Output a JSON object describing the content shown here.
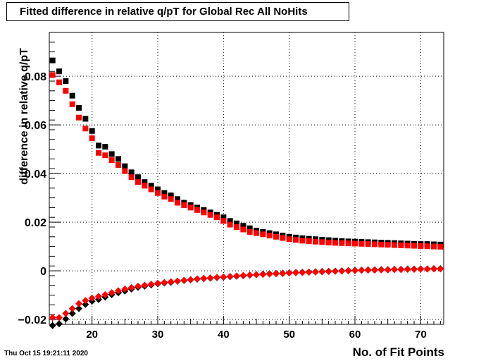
{
  "chart_data": {
    "type": "scatter",
    "title": "Fitted difference in relative q/pT for Global Rec All NoHits",
    "xlabel": "No. of Fit Points",
    "ylabel": "difference in relative q/pT",
    "timestamp": "Thu Oct 15 19:21:11 2020",
    "xlim": [
      13.5,
      73.5
    ],
    "ylim": [
      -0.022,
      0.098
    ],
    "grid": true,
    "xticks": [
      20,
      30,
      40,
      50,
      60,
      70
    ],
    "yticks": [
      -0.02,
      0,
      0.02,
      0.04,
      0.06,
      0.08
    ],
    "ytick_labels": [
      "−0.02",
      "0",
      "0.02",
      "0.04",
      "0.06",
      "0.08"
    ],
    "colors": {
      "black": "#000000",
      "red": "#ff0000"
    },
    "series": [
      {
        "marker": "square",
        "color": "#000000",
        "x": [
          14,
          15,
          16,
          17,
          18,
          19,
          20,
          21,
          22,
          23,
          24,
          25,
          26,
          27,
          28,
          29,
          30,
          31,
          32,
          33,
          34,
          35,
          36,
          37,
          38,
          39,
          40,
          41,
          42,
          43,
          44,
          45,
          46,
          47,
          48,
          49,
          50,
          51,
          52,
          53,
          54,
          55,
          56,
          57,
          58,
          59,
          60,
          61,
          62,
          63,
          64,
          65,
          66,
          67,
          68,
          69,
          70,
          71,
          72,
          73
        ],
        "y": [
          0.0865,
          0.082,
          0.078,
          0.072,
          0.067,
          0.0625,
          0.0575,
          0.0515,
          0.051,
          0.048,
          0.046,
          0.043,
          0.0405,
          0.0385,
          0.0365,
          0.035,
          0.0335,
          0.032,
          0.031,
          0.0295,
          0.028,
          0.027,
          0.026,
          0.025,
          0.024,
          0.023,
          0.022,
          0.0205,
          0.0195,
          0.0185,
          0.0175,
          0.0165,
          0.016,
          0.0155,
          0.015,
          0.0145,
          0.014,
          0.0137,
          0.0134,
          0.0132,
          0.013,
          0.0128,
          0.0126,
          0.0124,
          0.0122,
          0.0121,
          0.012,
          0.0119,
          0.0118,
          0.0117,
          0.0116,
          0.0115,
          0.0114,
          0.0113,
          0.0112,
          0.0111,
          0.011,
          0.011,
          0.0109,
          0.0108
        ]
      },
      {
        "marker": "square",
        "color": "#ff0000",
        "x": [
          14,
          15,
          16,
          17,
          18,
          19,
          20,
          21,
          22,
          23,
          24,
          25,
          26,
          27,
          28,
          29,
          30,
          31,
          32,
          33,
          34,
          35,
          36,
          37,
          38,
          39,
          40,
          41,
          42,
          43,
          44,
          45,
          46,
          47,
          48,
          49,
          50,
          51,
          52,
          53,
          54,
          55,
          56,
          57,
          58,
          59,
          60,
          61,
          62,
          63,
          64,
          65,
          66,
          67,
          68,
          69,
          70,
          71,
          72,
          73
        ],
        "y": [
          0.0805,
          0.0775,
          0.074,
          0.0685,
          0.063,
          0.0585,
          0.0545,
          0.0485,
          0.0475,
          0.0455,
          0.0435,
          0.041,
          0.0385,
          0.0365,
          0.035,
          0.0335,
          0.032,
          0.0305,
          0.0295,
          0.028,
          0.027,
          0.026,
          0.025,
          0.024,
          0.023,
          0.022,
          0.0205,
          0.019,
          0.018,
          0.017,
          0.016,
          0.0155,
          0.015,
          0.0145,
          0.014,
          0.0135,
          0.013,
          0.0127,
          0.0124,
          0.0122,
          0.012,
          0.0118,
          0.0116,
          0.0115,
          0.0114,
          0.0113,
          0.0112,
          0.0111,
          0.011,
          0.0109,
          0.0108,
          0.0107,
          0.0106,
          0.0105,
          0.0104,
          0.0103,
          0.0102,
          0.0101,
          0.01,
          0.0099
        ]
      },
      {
        "marker": "diamond",
        "color": "#000000",
        "x": [
          14,
          15,
          16,
          17,
          18,
          19,
          20,
          21,
          22,
          23,
          24,
          25,
          26,
          27,
          28,
          29,
          30,
          31,
          32,
          33,
          34,
          35,
          36,
          37,
          38,
          39,
          40,
          41,
          42,
          43,
          44,
          45,
          46,
          47,
          48,
          49,
          50,
          51,
          52,
          53,
          54,
          55,
          56,
          57,
          58,
          59,
          60,
          61,
          62,
          63,
          64,
          65,
          66,
          67,
          68,
          69,
          70,
          71,
          72,
          73
        ],
        "y": [
          -0.0225,
          -0.0218,
          -0.0198,
          -0.0175,
          -0.0155,
          -0.0138,
          -0.0125,
          -0.0118,
          -0.0108,
          -0.0098,
          -0.009,
          -0.0083,
          -0.0075,
          -0.0068,
          -0.0063,
          -0.0058,
          -0.0053,
          -0.005,
          -0.0047,
          -0.0043,
          -0.004,
          -0.0037,
          -0.0034,
          -0.0032,
          -0.003,
          -0.0028,
          -0.0026,
          -0.0024,
          -0.0022,
          -0.002,
          -0.0018,
          -0.0016,
          -0.0014,
          -0.0012,
          -0.0011,
          -0.001,
          -0.0008,
          -0.0007,
          -0.0006,
          -0.0005,
          -0.0004,
          -0.0003,
          -0.0002,
          -0.0001,
          0.0,
          0.0001,
          0.0002,
          0.0003,
          0.0004,
          0.0004,
          0.0005,
          0.0005,
          0.0006,
          0.0006,
          0.0007,
          0.0007,
          0.0008,
          0.0008,
          0.0009,
          0.0009
        ]
      },
      {
        "marker": "diamond",
        "color": "#ff0000",
        "x": [
          14,
          15,
          16,
          17,
          18,
          19,
          20,
          21,
          22,
          23,
          24,
          25,
          26,
          27,
          28,
          29,
          30,
          31,
          32,
          33,
          34,
          35,
          36,
          37,
          38,
          39,
          40,
          41,
          42,
          43,
          44,
          45,
          46,
          47,
          48,
          49,
          50,
          51,
          52,
          53,
          54,
          55,
          56,
          57,
          58,
          59,
          60,
          61,
          62,
          63,
          64,
          65,
          66,
          67,
          68,
          69,
          70,
          71,
          72,
          73
        ],
        "y": [
          -0.0192,
          -0.0192,
          -0.0175,
          -0.0155,
          -0.0135,
          -0.0122,
          -0.0112,
          -0.0105,
          -0.0098,
          -0.009,
          -0.0082,
          -0.0075,
          -0.0069,
          -0.0063,
          -0.0059,
          -0.0055,
          -0.0051,
          -0.0048,
          -0.0045,
          -0.0042,
          -0.0039,
          -0.0036,
          -0.0033,
          -0.0031,
          -0.0029,
          -0.0027,
          -0.0025,
          -0.0023,
          -0.0021,
          -0.0019,
          -0.0017,
          -0.0016,
          -0.0015,
          -0.0013,
          -0.0012,
          -0.0011,
          -0.0009,
          -0.0008,
          -0.0007,
          -0.0006,
          -0.0005,
          -0.0004,
          -0.0003,
          -0.0002,
          -0.0001,
          0.0,
          0.0001,
          0.0002,
          0.0003,
          0.0003,
          0.0004,
          0.0004,
          0.0005,
          0.0005,
          0.0006,
          0.0006,
          0.0007,
          0.0007,
          0.0008,
          0.0008
        ]
      }
    ]
  }
}
